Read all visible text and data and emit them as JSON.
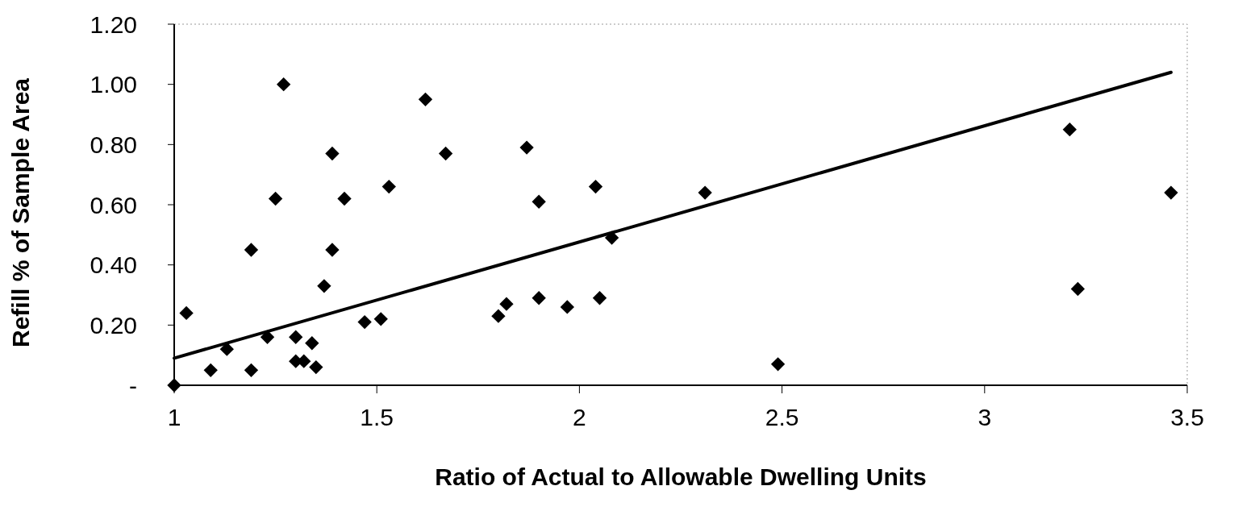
{
  "chart_data": {
    "type": "scatter",
    "xlabel": "Ratio of Actual to Allowable Dwelling Units",
    "ylabel": "Refill % of Sample Area",
    "xlim": [
      1,
      3.5
    ],
    "xticks": [
      1,
      1.5,
      2,
      2.5,
      3,
      3.5
    ],
    "ylim": [
      0,
      1.2
    ],
    "yticks": [
      {
        "value": 0,
        "label": "-"
      },
      {
        "value": 0.2,
        "label": "0.20"
      },
      {
        "value": 0.4,
        "label": "0.40"
      },
      {
        "value": 0.6,
        "label": "0.60"
      },
      {
        "value": 0.8,
        "label": "0.80"
      },
      {
        "value": 1.0,
        "label": "1.00"
      },
      {
        "value": 1.2,
        "label": "1.20"
      }
    ],
    "grid": false,
    "series": [
      {
        "type": "scatter",
        "marker": "diamond",
        "color": "#000000",
        "x": [
          1.0,
          1.03,
          1.09,
          1.13,
          1.19,
          1.19,
          1.23,
          1.25,
          1.27,
          1.3,
          1.3,
          1.32,
          1.34,
          1.35,
          1.37,
          1.39,
          1.39,
          1.42,
          1.47,
          1.51,
          1.53,
          1.62,
          1.67,
          1.8,
          1.82,
          1.87,
          1.9,
          1.9,
          1.97,
          2.04,
          2.05,
          2.08,
          2.31,
          2.49,
          3.21,
          3.23,
          3.46
        ],
        "values": [
          0.0,
          0.24,
          0.05,
          0.12,
          0.05,
          0.45,
          0.16,
          0.62,
          1.0,
          0.16,
          0.08,
          0.08,
          0.14,
          0.06,
          0.33,
          0.77,
          0.45,
          0.62,
          0.21,
          0.22,
          0.66,
          0.95,
          0.77,
          0.23,
          0.27,
          0.79,
          0.61,
          0.29,
          0.26,
          0.66,
          0.29,
          0.49,
          0.64,
          0.07,
          0.85,
          0.32,
          0.64
        ]
      },
      {
        "type": "line",
        "color": "#000000",
        "x": [
          1.0,
          3.46
        ],
        "values": [
          0.09,
          1.04
        ]
      }
    ]
  }
}
